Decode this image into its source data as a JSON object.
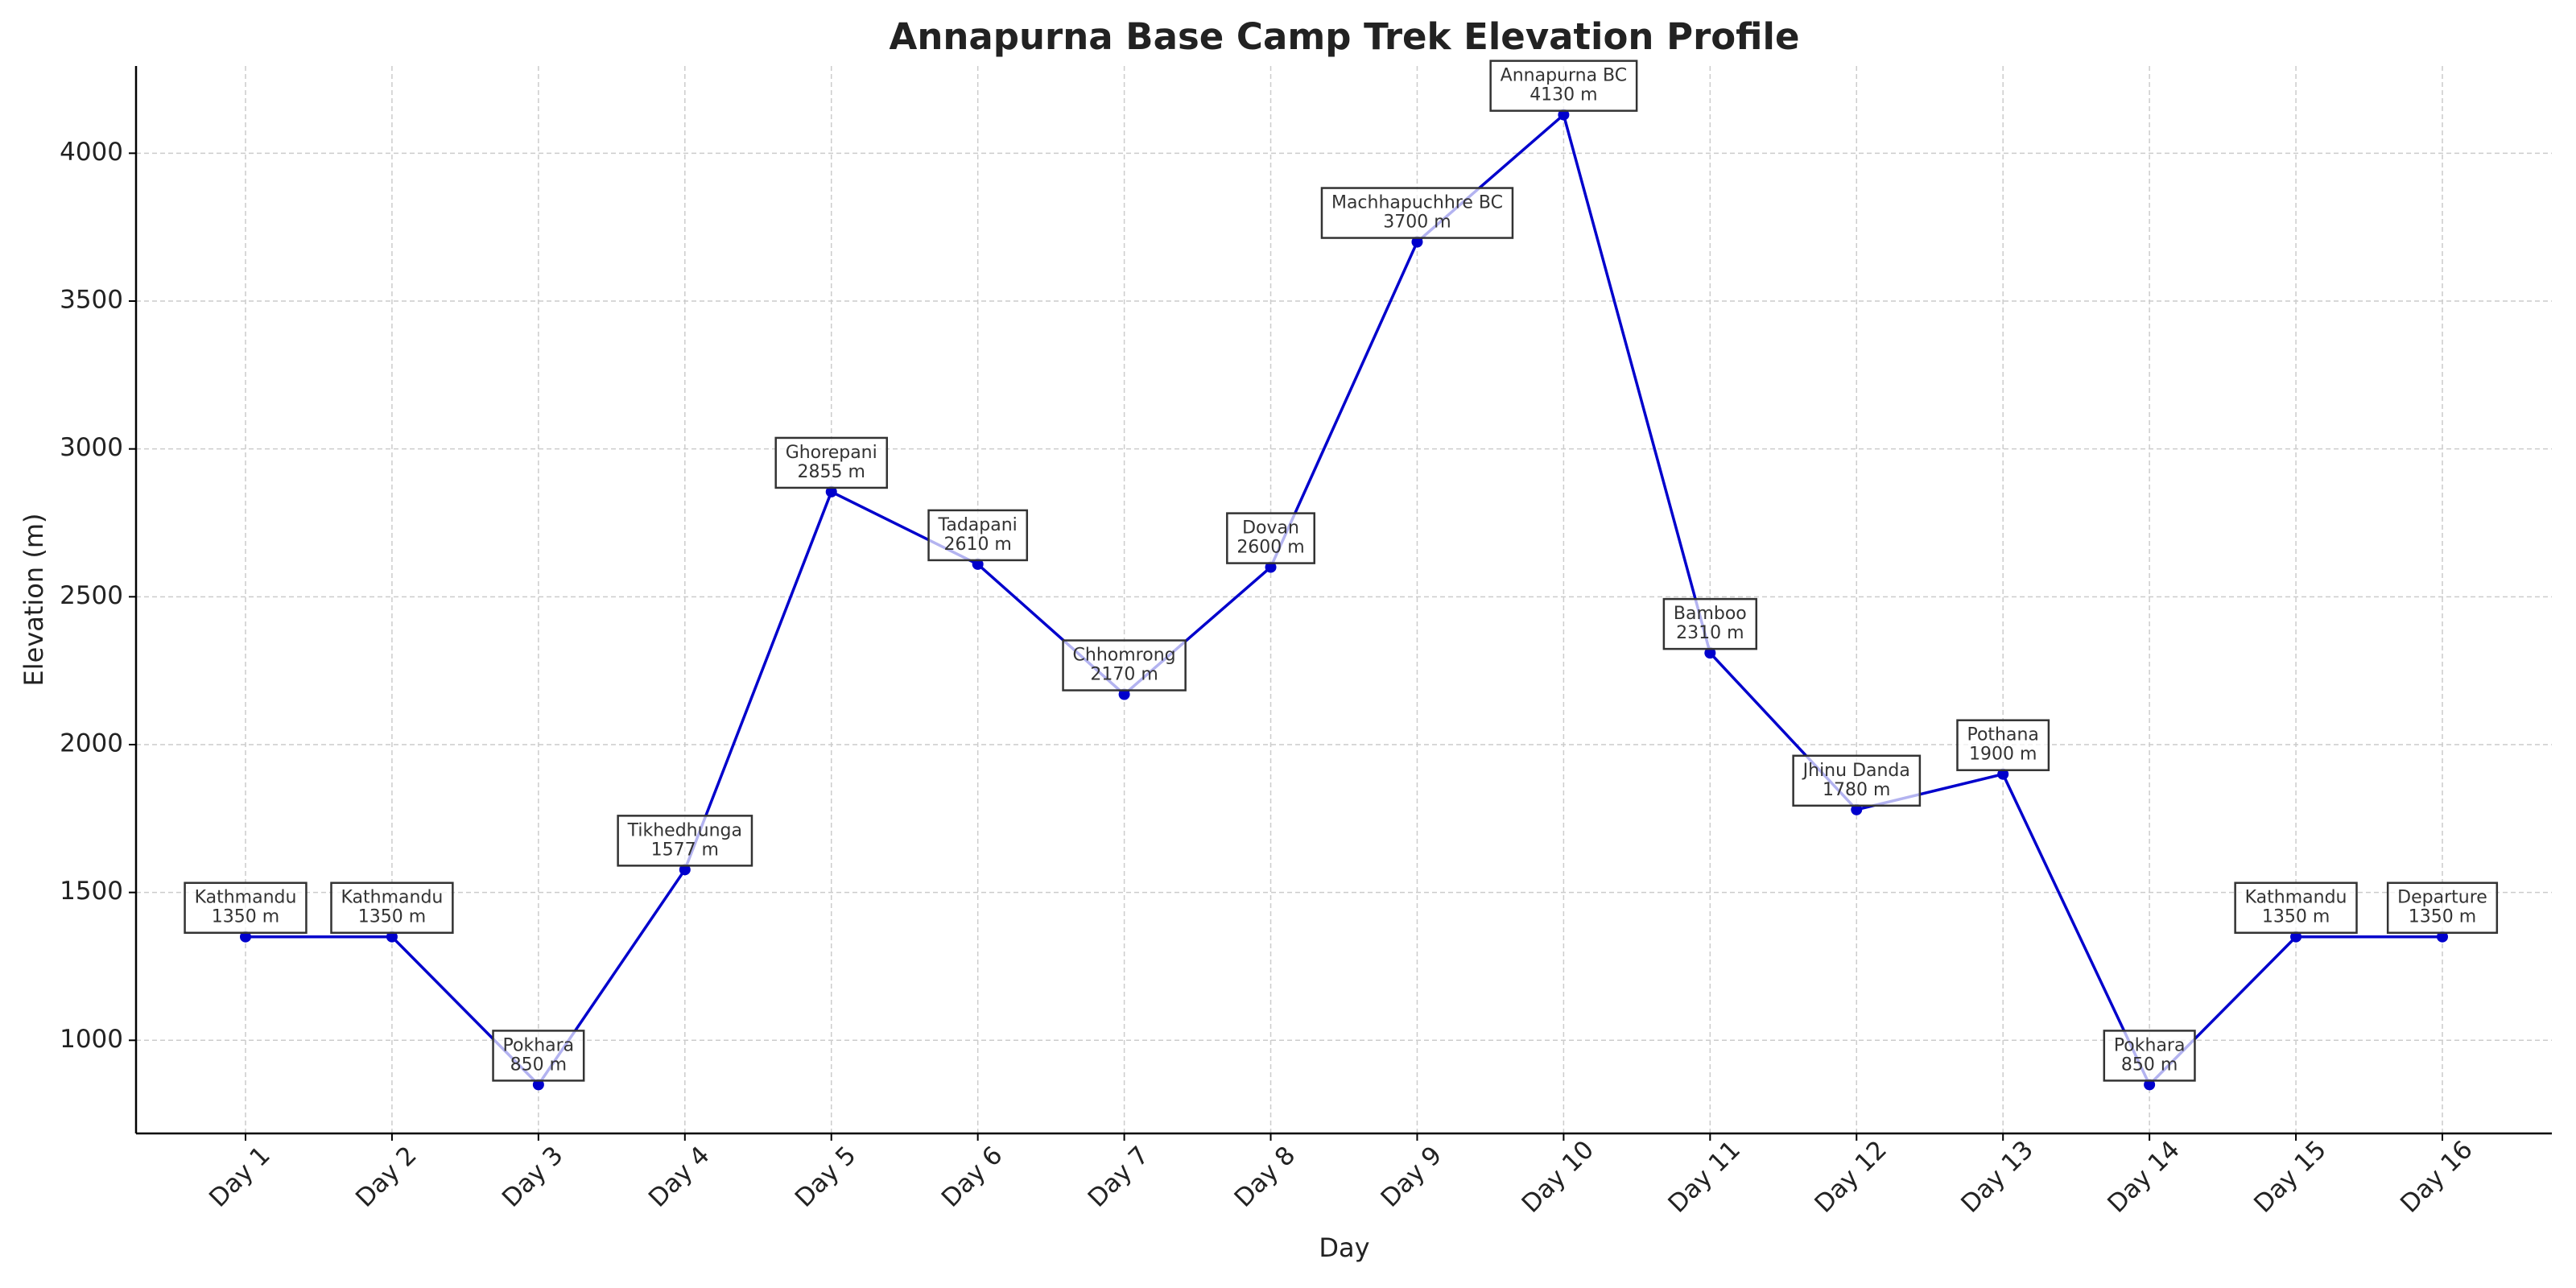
{
  "chart_data": {
    "type": "line",
    "title": "Annapurna Base Camp Trek Elevation Profile",
    "xlabel": "Day",
    "ylabel": "Elevation (m)",
    "categories": [
      "Day 1",
      "Day 2",
      "Day 3",
      "Day 4",
      "Day 5",
      "Day 6",
      "Day 7",
      "Day 8",
      "Day 9",
      "Day 10",
      "Day 11",
      "Day 12",
      "Day 13",
      "Day 14",
      "Day 15",
      "Day 16"
    ],
    "values": [
      1350,
      1350,
      850,
      1577,
      2855,
      2610,
      2170,
      2600,
      3700,
      4130,
      2310,
      1780,
      1900,
      850,
      1350,
      1350
    ],
    "value_labels": [
      "1350 m",
      "1350 m",
      "850 m",
      "1577 m",
      "2855 m",
      "2610 m",
      "2170 m",
      "2600 m",
      "3700 m",
      "4130 m",
      "2310 m",
      "1780 m",
      "1900 m",
      "850 m",
      "1350 m",
      "1350 m"
    ],
    "point_labels": [
      "Kathmandu",
      "Kathmandu",
      "Pokhara",
      "Tikhedhunga",
      "Ghorepani",
      "Tadapani",
      "Chhomrong",
      "Dovan",
      "Machhapuchhre BC",
      "Annapurna BC",
      "Bamboo",
      "Jhinu Danda",
      "Pothana",
      "Pokhara",
      "Kathmandu",
      "Departure"
    ],
    "color": "#0000cc",
    "ylim": [
      685,
      4295
    ],
    "yticks": [
      1000,
      1500,
      2000,
      2500,
      3000,
      3500,
      4000
    ],
    "grid": true
  }
}
